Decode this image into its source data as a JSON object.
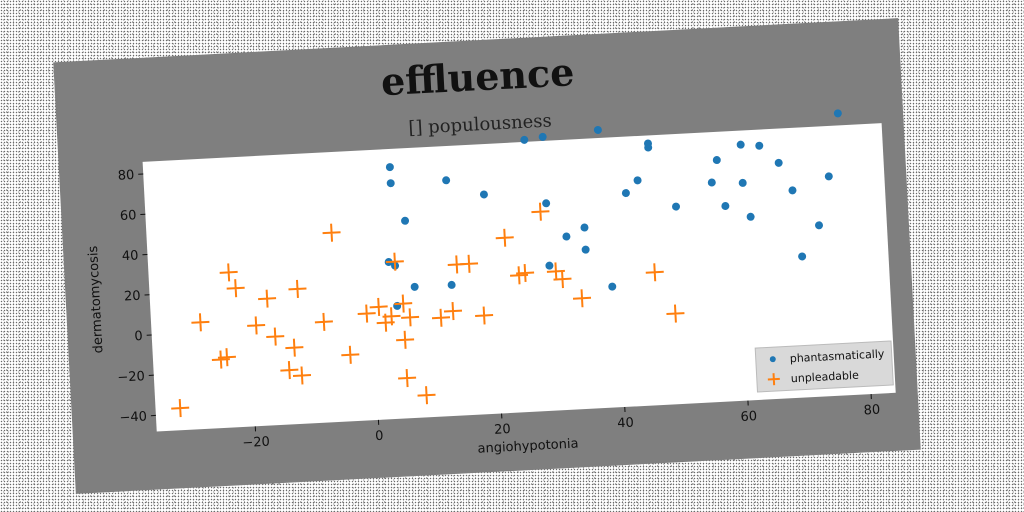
{
  "chart_data": {
    "type": "scatter",
    "title": "effluence",
    "subtitle": "[] populousness",
    "xlabel": "angiohypotonia",
    "ylabel": "dermatomycosis",
    "xlim": [
      -36,
      84
    ],
    "ylim": [
      -48,
      86
    ],
    "xticks": [
      -20,
      0,
      20,
      40,
      60,
      80
    ],
    "yticks": [
      -40,
      -20,
      0,
      20,
      40,
      60,
      80
    ],
    "grid": false,
    "legend_position": "lower-right",
    "colors": {
      "figure_bg": "#7f7f7f",
      "plot_bg": "#ffffff",
      "series_1": "#1f77b4",
      "series_2": "#ff7f0e"
    },
    "series": [
      {
        "name": "phantasmatically",
        "marker": "circle",
        "color": "#1f77b4",
        "points": [
          [
            4,
            77
          ],
          [
            4,
            69
          ],
          [
            6,
            50
          ],
          [
            3,
            30
          ],
          [
            4,
            28
          ],
          [
            7,
            17
          ],
          [
            4,
            8
          ],
          [
            13,
            69
          ],
          [
            13,
            17
          ],
          [
            19,
            61
          ],
          [
            26,
            87
          ],
          [
            29,
            88
          ],
          [
            29,
            55
          ],
          [
            29,
            24
          ],
          [
            32,
            38
          ],
          [
            35,
            42
          ],
          [
            35,
            31
          ],
          [
            38,
            90
          ],
          [
            39,
            12
          ],
          [
            42,
            58
          ],
          [
            44,
            64
          ],
          [
            46,
            80
          ],
          [
            46,
            82
          ],
          [
            50,
            50
          ],
          [
            56,
            61
          ],
          [
            57,
            72
          ],
          [
            58,
            49
          ],
          [
            61,
            79
          ],
          [
            61,
            60
          ],
          [
            62,
            43
          ],
          [
            64,
            78
          ],
          [
            67,
            69
          ],
          [
            69,
            55
          ],
          [
            70,
            22
          ],
          [
            73,
            37
          ],
          [
            75,
            61
          ],
          [
            77,
            92
          ]
        ]
      },
      {
        "name": "unpleadable",
        "marker": "plus",
        "color": "#ff7f0e",
        "points": [
          [
            -32,
            -37
          ],
          [
            -28,
            5
          ],
          [
            -25,
            -14
          ],
          [
            -24,
            -13
          ],
          [
            -23,
            29
          ],
          [
            -22,
            21
          ],
          [
            -19,
            2
          ],
          [
            -17,
            15
          ],
          [
            -16,
            -4
          ],
          [
            -14,
            -21
          ],
          [
            -13,
            -10
          ],
          [
            -12,
            -24
          ],
          [
            -12,
            19
          ],
          [
            -8,
            2
          ],
          [
            -6,
            46
          ],
          [
            -4,
            -15
          ],
          [
            -1,
            5
          ],
          [
            1,
            8
          ],
          [
            2,
            0
          ],
          [
            3,
            3
          ],
          [
            4,
            30
          ],
          [
            5,
            9
          ],
          [
            5,
            -28
          ],
          [
            5,
            -9
          ],
          [
            6,
            2
          ],
          [
            8,
            -37
          ],
          [
            11,
            1
          ],
          [
            13,
            4
          ],
          [
            14,
            27
          ],
          [
            16,
            27
          ],
          [
            18,
            1
          ],
          [
            22,
            39
          ],
          [
            24,
            20
          ],
          [
            25,
            21
          ],
          [
            28,
            51
          ],
          [
            30,
            21
          ],
          [
            31,
            17
          ],
          [
            34,
            7
          ],
          [
            46,
            18
          ],
          [
            49,
            -3
          ]
        ]
      }
    ]
  }
}
